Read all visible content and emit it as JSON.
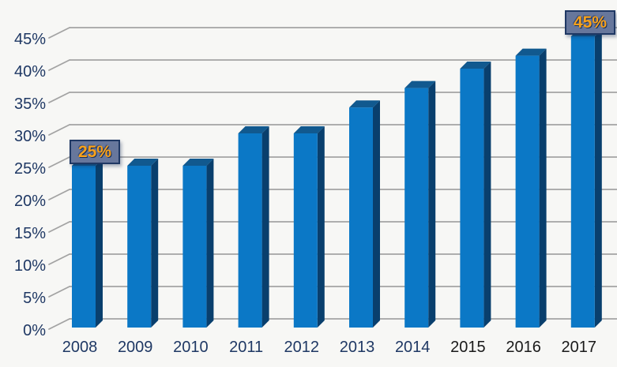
{
  "chart_data": {
    "type": "bar",
    "title": "",
    "xlabel": "",
    "ylabel": "",
    "categories": [
      "2008",
      "2009",
      "2010",
      "2011",
      "2012",
      "2013",
      "2014",
      "2015",
      "2016",
      "2017"
    ],
    "values": [
      25,
      25,
      25,
      30,
      30,
      34,
      37,
      40,
      42,
      45
    ],
    "unit": "%",
    "ylim": [
      0,
      45
    ],
    "ytick_step": 5,
    "ytick_labels": [
      "0%",
      "5%",
      "10%",
      "15%",
      "20%",
      "25%",
      "30%",
      "35%",
      "40%",
      "45%"
    ],
    "grid": true,
    "legend": "none",
    "effect": "3d-column",
    "callouts": [
      {
        "category": "2008",
        "index": 0,
        "text": "25%"
      },
      {
        "category": "2017",
        "index": 9,
        "text": "45%"
      }
    ],
    "category_label_colors": [
      "#1f3864",
      "#1f3864",
      "#1f3864",
      "#1f3864",
      "#1f3864",
      "#1f3864",
      "#1f3864",
      "#1a1a1a",
      "#1a1a1a",
      "#1a1a1a"
    ],
    "colors": {
      "bar_front": "#0b78c6",
      "bar_top": "#11598f",
      "bar_side": "#093f6d",
      "gridline": "#a3a3a3",
      "axis_label": "#1f3864",
      "callout_bg": "#67779c",
      "callout_border": "#1f3864",
      "callout_text": "#f9a21b",
      "background": "#f7f7f5"
    }
  }
}
